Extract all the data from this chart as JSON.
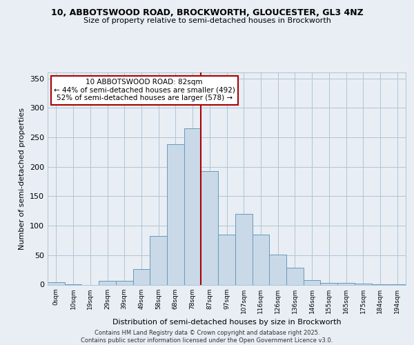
{
  "title1": "10, ABBOTSWOOD ROAD, BROCKWORTH, GLOUCESTER, GL3 4NZ",
  "title2": "Size of property relative to semi-detached houses in Brockworth",
  "xlabel": "Distribution of semi-detached houses by size in Brockworth",
  "ylabel": "Number of semi-detached properties",
  "bin_labels": [
    "0sqm",
    "10sqm",
    "19sqm",
    "29sqm",
    "39sqm",
    "49sqm",
    "58sqm",
    "68sqm",
    "78sqm",
    "87sqm",
    "97sqm",
    "107sqm",
    "116sqm",
    "126sqm",
    "136sqm",
    "146sqm",
    "155sqm",
    "165sqm",
    "175sqm",
    "184sqm",
    "194sqm"
  ],
  "bar_heights": [
    4,
    1,
    0,
    6,
    7,
    26,
    82,
    238,
    265,
    193,
    85,
    120,
    85,
    51,
    29,
    8,
    3,
    3,
    2,
    1,
    1
  ],
  "bar_color": "#c9d9e8",
  "bar_edge_color": "#6699bb",
  "vline_x_index": 8.5,
  "vline_color": "#aa0000",
  "annotation_title": "10 ABBOTSWOOD ROAD: 82sqm",
  "annotation_line1": "← 44% of semi-detached houses are smaller (492)",
  "annotation_line2": "52% of semi-detached houses are larger (578) →",
  "annotation_box_color": "#aa0000",
  "annotation_bg": "#ffffff",
  "ylim": [
    0,
    360
  ],
  "yticks": [
    0,
    50,
    100,
    150,
    200,
    250,
    300,
    350
  ],
  "footer1": "Contains HM Land Registry data © Crown copyright and database right 2025.",
  "footer2": "Contains public sector information licensed under the Open Government Licence v3.0.",
  "background_color": "#e8eef4",
  "grid_color": "#b0c4d4"
}
